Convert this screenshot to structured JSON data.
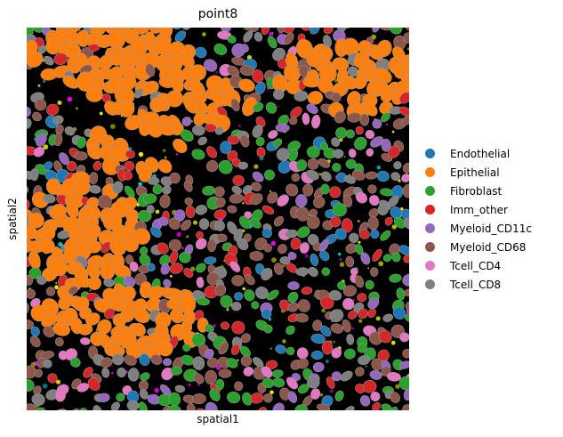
{
  "plot": {
    "title": "point8",
    "xlabel": "spatial1",
    "ylabel": "spatial2"
  },
  "legend": [
    {
      "label": "Endothelial",
      "color": "#1f77b4"
    },
    {
      "label": "Epithelial",
      "color": "#ff7f0e"
    },
    {
      "label": "Fibroblast",
      "color": "#2ca02c"
    },
    {
      "label": "Imm_other",
      "color": "#d62728"
    },
    {
      "label": "Myeloid_CD11c",
      "color": "#9467bd"
    },
    {
      "label": "Myeloid_CD68",
      "color": "#8c564b"
    },
    {
      "label": "Tcell_CD4",
      "color": "#e377c2"
    },
    {
      "label": "Tcell_CD8",
      "color": "#7f7f7f"
    }
  ],
  "background": {
    "tissue_color": "#000000",
    "marker_colors": [
      "#ffff00",
      "#ff00ff",
      "#00ffff"
    ]
  }
}
